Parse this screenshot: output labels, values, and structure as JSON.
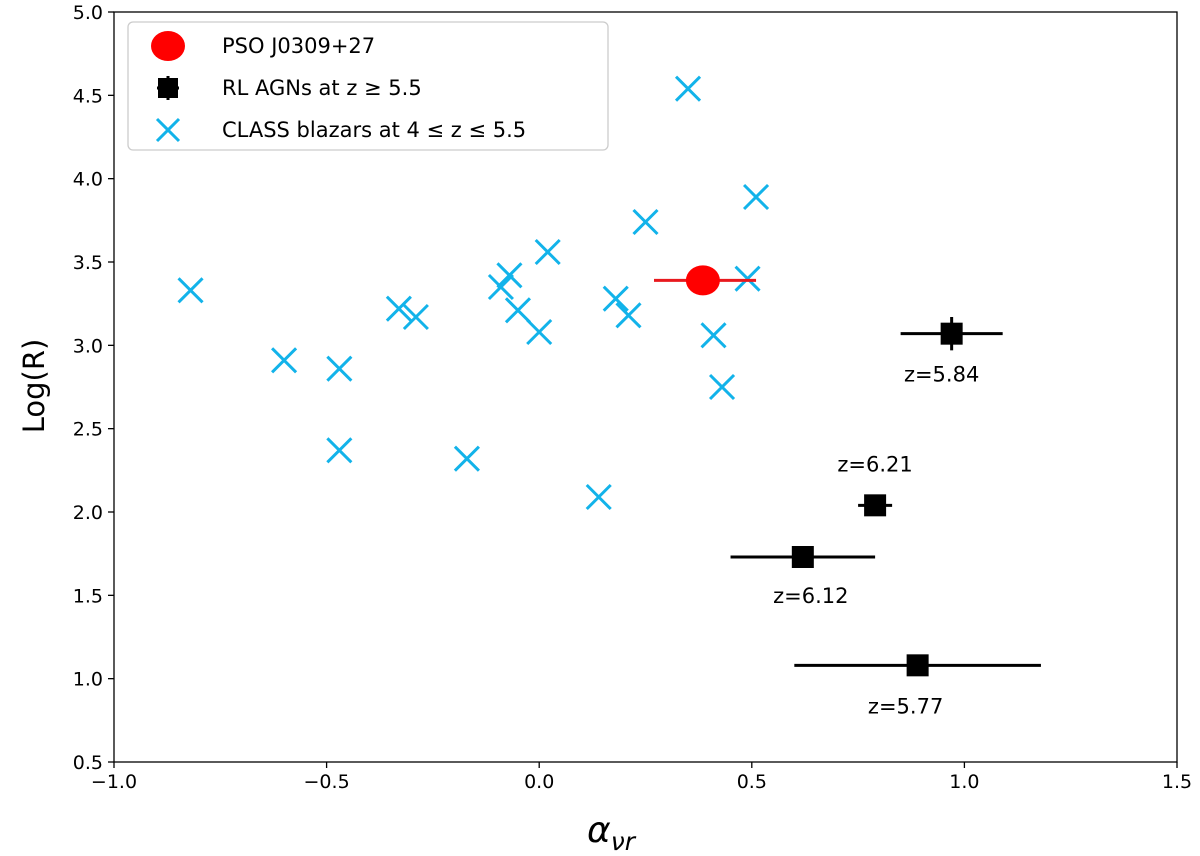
{
  "chart_data": {
    "type": "scatter",
    "title": "",
    "xlabel": "α",
    "xlabel_sub": "νr",
    "ylabel": "Log(R)",
    "xlim": [
      -1.0,
      1.5
    ],
    "ylim": [
      0.5,
      5.0
    ],
    "xticks": [
      -1.0,
      -0.5,
      0.0,
      0.5,
      1.0,
      1.5
    ],
    "xtick_labels": [
      "−1.0",
      "−0.5",
      "0.0",
      "0.5",
      "1.0",
      "1.5"
    ],
    "yticks": [
      0.5,
      1.0,
      1.5,
      2.0,
      2.5,
      3.0,
      3.5,
      4.0,
      4.5,
      5.0
    ],
    "ytick_labels": [
      "0.5",
      "1.0",
      "1.5",
      "2.0",
      "2.5",
      "3.0",
      "3.5",
      "4.0",
      "4.5",
      "5.0"
    ],
    "grid": false,
    "legend_position": "top-left",
    "colors": {
      "pso": "#ff0000",
      "pso_err": "#e8191e",
      "rl": "#000000",
      "class": "#12b3ea"
    },
    "series": [
      {
        "name": "PSO J0309+27",
        "legend_label": "PSO J0309+27",
        "marker": "circle",
        "points": [
          {
            "x": 0.385,
            "y": 3.39,
            "xerr": [
              0.115,
              0.125
            ]
          }
        ]
      },
      {
        "name": "RL AGNs at z ≥ 5.5",
        "legend_label": "RL AGNs at z ≥ 5.5",
        "marker": "square",
        "points": [
          {
            "x": 0.97,
            "y": 3.07,
            "xerr": [
              0.12,
              0.12
            ],
            "yerr": [
              0.1,
              0.1
            ],
            "label": "z=5.84"
          },
          {
            "x": 0.79,
            "y": 2.04,
            "xerr": [
              0.04,
              0.04
            ],
            "yerr": [
              0.03,
              0.03
            ],
            "label": "z=6.21"
          },
          {
            "x": 0.62,
            "y": 1.73,
            "xerr": [
              0.17,
              0.17
            ],
            "yerr": [
              0.0,
              0.0
            ],
            "label": "z=6.12"
          },
          {
            "x": 0.89,
            "y": 1.08,
            "xerr": [
              0.29,
              0.29
            ],
            "yerr": [
              0.0,
              0.0
            ],
            "label": "z=5.77"
          }
        ]
      },
      {
        "name": "CLASS blazars at 4 ≤ z ≤ 5.5",
        "legend_label": "CLASS blazars at 4 ≤ z ≤ 5.5",
        "marker": "x",
        "points": [
          {
            "x": 0.35,
            "y": 4.54
          },
          {
            "x": 0.51,
            "y": 3.89
          },
          {
            "x": 0.25,
            "y": 3.74
          },
          {
            "x": 0.02,
            "y": 3.56
          },
          {
            "x": -0.07,
            "y": 3.42
          },
          {
            "x": -0.09,
            "y": 3.35
          },
          {
            "x": 0.49,
            "y": 3.4
          },
          {
            "x": -0.82,
            "y": 3.33
          },
          {
            "x": -0.33,
            "y": 3.22
          },
          {
            "x": -0.29,
            "y": 3.17
          },
          {
            "x": -0.05,
            "y": 3.21
          },
          {
            "x": 0.18,
            "y": 3.28
          },
          {
            "x": 0.21,
            "y": 3.18
          },
          {
            "x": 0.0,
            "y": 3.08
          },
          {
            "x": 0.41,
            "y": 3.06
          },
          {
            "x": -0.6,
            "y": 2.91
          },
          {
            "x": -0.47,
            "y": 2.86
          },
          {
            "x": 0.43,
            "y": 2.75
          },
          {
            "x": -0.47,
            "y": 2.37
          },
          {
            "x": -0.17,
            "y": 2.32
          },
          {
            "x": 0.14,
            "y": 2.09
          }
        ]
      }
    ]
  }
}
